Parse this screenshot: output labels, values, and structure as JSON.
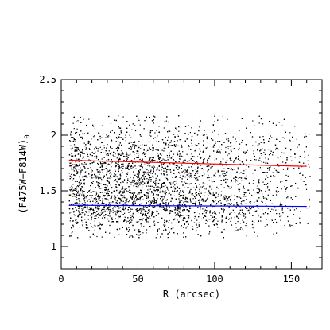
{
  "chart_data": {
    "type": "scatter",
    "title": "",
    "xlabel": "R (arcsec)",
    "ylabel": {
      "main": "(F475W−F814W)",
      "subscript": "0"
    },
    "xlim": [
      0,
      170
    ],
    "ylim": [
      0.8,
      2.5
    ],
    "grid": false,
    "legend": "none",
    "x_ticks": {
      "values": [
        0,
        50,
        100,
        150
      ],
      "labels": [
        "0",
        "50",
        "100",
        "150"
      ]
    },
    "y_ticks": {
      "values": [
        1,
        1.5,
        2,
        2.5
      ],
      "labels": [
        "1",
        "1.5",
        "2",
        "2.5"
      ]
    },
    "scatter": {
      "color": "#000000",
      "point_count": 6000,
      "x_range": [
        5,
        162
      ],
      "y_range": [
        1.08,
        2.18
      ],
      "density": "dense below R≈60 arcsec, sparser outward; concentrations near colors 1.75 and 1.37",
      "sample_points": [
        [
          10,
          1.77
        ],
        [
          15,
          1.38
        ],
        [
          20,
          1.85
        ],
        [
          25,
          1.45
        ],
        [
          30,
          1.6
        ],
        [
          35,
          1.72
        ],
        [
          40,
          1.35
        ],
        [
          45,
          1.9
        ],
        [
          50,
          1.55
        ],
        [
          55,
          1.4
        ],
        [
          60,
          1.68
        ],
        [
          65,
          1.36
        ],
        [
          70,
          1.8
        ],
        [
          75,
          1.5
        ],
        [
          80,
          1.33
        ],
        [
          90,
          1.75
        ],
        [
          100,
          1.45
        ],
        [
          110,
          1.38
        ],
        [
          120,
          1.7
        ],
        [
          130,
          2.15
        ],
        [
          140,
          1.3
        ],
        [
          150,
          1.55
        ],
        [
          160,
          1.35
        ]
      ]
    },
    "series": [
      {
        "name": "",
        "type": "line",
        "color": "#ff0000",
        "x": [
          5,
          160
        ],
        "y": [
          1.775,
          1.72
        ]
      },
      {
        "name": "",
        "type": "line",
        "color": "#0000ff",
        "x": [
          5,
          160
        ],
        "y": [
          1.37,
          1.36
        ]
      }
    ]
  }
}
